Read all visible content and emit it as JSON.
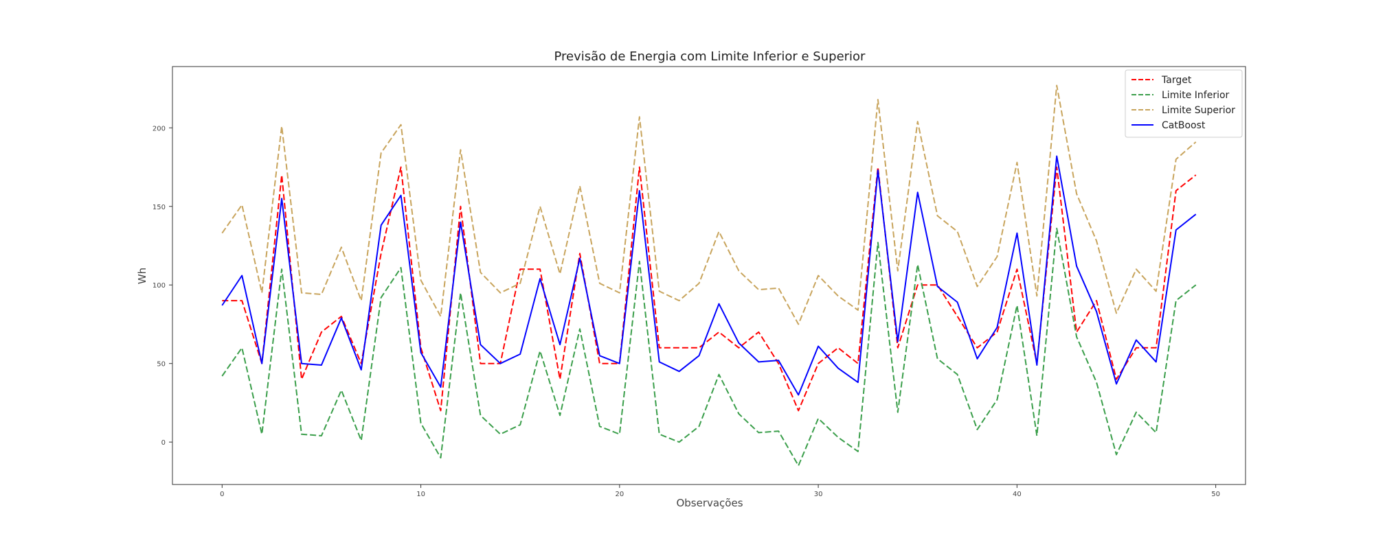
{
  "chart_data": {
    "type": "line",
    "title": "Previsão de Energia com Limite Inferior e Superior",
    "xlabel": "Observações",
    "ylabel": "Wh",
    "xlim": [
      -2.5,
      51.5
    ],
    "ylim": [
      -27,
      239
    ],
    "xticks": [
      0,
      10,
      20,
      30,
      40,
      50
    ],
    "yticks": [
      0,
      50,
      100,
      150,
      200
    ],
    "grid": false,
    "legend_position": "top-right",
    "x": [
      0,
      1,
      2,
      3,
      4,
      5,
      6,
      7,
      8,
      9,
      10,
      11,
      12,
      13,
      14,
      15,
      16,
      17,
      18,
      19,
      20,
      21,
      22,
      23,
      24,
      25,
      26,
      27,
      28,
      29,
      30,
      31,
      32,
      33,
      34,
      35,
      36,
      37,
      38,
      39,
      40,
      41,
      42,
      43,
      44,
      45,
      46,
      47,
      48,
      49
    ],
    "series": [
      {
        "name": "Target",
        "color": "#ff0000",
        "dash": "dashed",
        "values": [
          90,
          90,
          50,
          170,
          40,
          70,
          80,
          50,
          120,
          175,
          60,
          20,
          150,
          50,
          50,
          110,
          110,
          40,
          120,
          50,
          50,
          175,
          60,
          60,
          60,
          70,
          60,
          70,
          50,
          20,
          50,
          60,
          50,
          175,
          60,
          100,
          100,
          80,
          60,
          70,
          110,
          50,
          175,
          70,
          90,
          40,
          60,
          60,
          160,
          170
        ]
      },
      {
        "name": "Limite Inferior",
        "color": "#3a9e4a",
        "dash": "dashed",
        "values": [
          42,
          60,
          5,
          110,
          5,
          4,
          33,
          1,
          92,
          111,
          12,
          -10,
          95,
          17,
          5,
          11,
          58,
          17,
          72,
          10,
          5,
          115,
          5,
          0,
          10,
          43,
          18,
          6,
          7,
          -15,
          15,
          3,
          -6,
          127,
          19,
          113,
          53,
          43,
          8,
          27,
          87,
          4,
          136,
          67,
          38,
          -8,
          19,
          6,
          90,
          100
        ]
      },
      {
        "name": "Limite Superior",
        "color": "#c8a45c",
        "dash": "dashed",
        "values": [
          133,
          151,
          95,
          201,
          95,
          94,
          124,
          90,
          184,
          202,
          103,
          80,
          186,
          108,
          95,
          101,
          150,
          107,
          163,
          101,
          95,
          207,
          96,
          90,
          101,
          134,
          109,
          97,
          98,
          75,
          106,
          93,
          84,
          218,
          109,
          204,
          144,
          134,
          99,
          118,
          178,
          93,
          227,
          158,
          128,
          82,
          110,
          96,
          180,
          191
        ]
      },
      {
        "name": "CatBoost",
        "color": "#0000ff",
        "dash": "solid",
        "values": [
          87,
          106,
          50,
          155,
          50,
          49,
          79,
          46,
          138,
          157,
          57,
          35,
          140,
          62,
          50,
          56,
          104,
          62,
          117,
          55,
          50,
          160,
          51,
          45,
          55,
          88,
          63,
          51,
          52,
          30,
          61,
          47,
          38,
          173,
          64,
          159,
          99,
          89,
          53,
          73,
          133,
          49,
          182,
          112,
          83,
          37,
          65,
          51,
          135,
          145
        ]
      }
    ]
  }
}
